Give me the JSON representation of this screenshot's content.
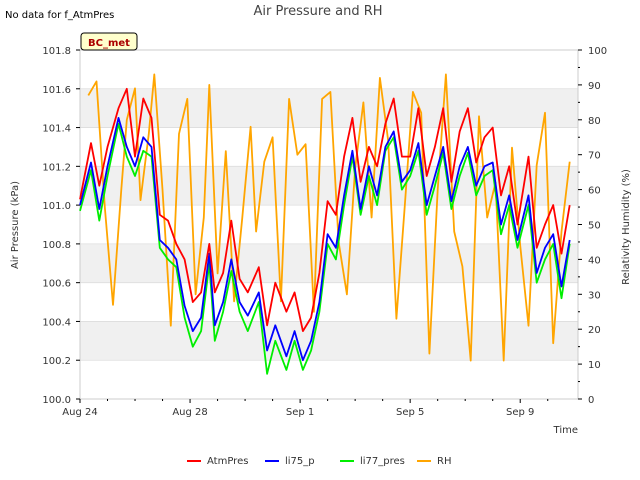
{
  "note": "No data for f_AtmPres",
  "chart_data": {
    "type": "line",
    "title": "Air Pressure and RH",
    "xlabel": "Time",
    "ylabel": "Air Pressure (kPa)",
    "y2label": "Relativity Humidity (%)",
    "badge": "BC_met",
    "xticks": [
      "Aug 24",
      "Aug 28",
      "Sep 1",
      "Sep 5",
      "Sep 9"
    ],
    "yticks": [
      "100.0",
      "100.2",
      "100.4",
      "100.6",
      "100.8",
      "101.0",
      "101.2",
      "101.4",
      "101.6",
      "101.8"
    ],
    "y2ticks": [
      "0",
      "10",
      "20",
      "30",
      "40",
      "50",
      "60",
      "70",
      "80",
      "90",
      "100"
    ],
    "ylim": [
      100.0,
      101.8
    ],
    "y2lim": [
      0,
      100
    ],
    "xlim_days": [
      0,
      18.1
    ],
    "grid": "horizontal bands",
    "legend_position": "bottom",
    "colors": {
      "AtmPres": "#ff0000",
      "li75_p": "#0000ff",
      "li77_pres": "#00ee00",
      "RH": "#ffa500",
      "band": "#f0f0f0"
    },
    "series": [
      {
        "name": "AtmPres",
        "axis": "left",
        "x": [
          0.0,
          0.4,
          0.7,
          1.0,
          1.4,
          1.7,
          2.0,
          2.3,
          2.6,
          2.9,
          3.2,
          3.5,
          3.8,
          4.1,
          4.4,
          4.7,
          4.9,
          5.2,
          5.5,
          5.8,
          6.1,
          6.5,
          6.8,
          7.1,
          7.5,
          7.8,
          8.1,
          8.4,
          8.7,
          9.0,
          9.3,
          9.6,
          9.9,
          10.2,
          10.5,
          10.8,
          11.1,
          11.4,
          11.7,
          12.0,
          12.3,
          12.6,
          12.9,
          13.2,
          13.5,
          13.8,
          14.1,
          14.4,
          14.7,
          15.0,
          15.3,
          15.6,
          15.9,
          16.3,
          16.6,
          16.9,
          17.2,
          17.5,
          17.8
        ],
        "y": [
          101.03,
          101.32,
          101.1,
          101.3,
          101.5,
          101.6,
          101.25,
          101.55,
          101.45,
          100.95,
          100.92,
          100.8,
          100.72,
          100.5,
          100.55,
          100.8,
          100.55,
          100.65,
          100.92,
          100.62,
          100.55,
          100.68,
          100.38,
          100.6,
          100.45,
          100.55,
          100.35,
          100.42,
          100.65,
          101.02,
          100.95,
          101.25,
          101.45,
          101.12,
          101.3,
          101.2,
          101.42,
          101.55,
          101.25,
          101.25,
          101.5,
          101.15,
          101.3,
          101.5,
          101.12,
          101.38,
          101.5,
          101.22,
          101.35,
          101.4,
          101.05,
          101.2,
          100.9,
          101.25,
          100.78,
          100.9,
          101.0,
          100.75,
          101.0
        ]
      },
      {
        "name": "li75_p",
        "axis": "left",
        "x": [
          0.0,
          0.4,
          0.7,
          1.0,
          1.4,
          1.7,
          2.0,
          2.3,
          2.6,
          2.9,
          3.2,
          3.5,
          3.8,
          4.1,
          4.4,
          4.7,
          4.9,
          5.2,
          5.5,
          5.8,
          6.1,
          6.5,
          6.8,
          7.1,
          7.5,
          7.8,
          8.1,
          8.4,
          8.7,
          9.0,
          9.3,
          9.6,
          9.9,
          10.2,
          10.5,
          10.8,
          11.1,
          11.4,
          11.7,
          12.0,
          12.3,
          12.6,
          12.9,
          13.2,
          13.5,
          13.8,
          14.1,
          14.4,
          14.7,
          15.0,
          15.3,
          15.6,
          15.9,
          16.3,
          16.6,
          16.9,
          17.2,
          17.5,
          17.8
        ],
        "y": [
          101.0,
          101.22,
          100.98,
          101.2,
          101.45,
          101.3,
          101.2,
          101.35,
          101.3,
          100.82,
          100.78,
          100.72,
          100.48,
          100.35,
          100.42,
          100.75,
          100.38,
          100.5,
          100.72,
          100.5,
          100.43,
          100.55,
          100.25,
          100.38,
          100.22,
          100.35,
          100.2,
          100.3,
          100.5,
          100.85,
          100.78,
          101.05,
          101.28,
          100.98,
          101.2,
          101.05,
          101.3,
          101.38,
          101.12,
          101.18,
          101.32,
          101.0,
          101.15,
          101.3,
          101.02,
          101.2,
          101.3,
          101.1,
          101.2,
          101.22,
          100.9,
          101.05,
          100.82,
          101.05,
          100.65,
          100.78,
          100.85,
          100.58,
          100.82
        ]
      },
      {
        "name": "li77_pres",
        "axis": "left",
        "x": [
          0.0,
          0.4,
          0.7,
          1.0,
          1.4,
          1.7,
          2.0,
          2.3,
          2.6,
          2.9,
          3.2,
          3.5,
          3.8,
          4.1,
          4.4,
          4.7,
          4.9,
          5.2,
          5.5,
          5.8,
          6.1,
          6.5,
          6.8,
          7.1,
          7.5,
          7.8,
          8.1,
          8.4,
          8.7,
          9.0,
          9.3,
          9.6,
          9.9,
          10.2,
          10.5,
          10.8,
          11.1,
          11.4,
          11.7,
          12.0,
          12.3,
          12.6,
          12.9,
          13.2,
          13.5,
          13.8,
          14.1,
          14.4,
          14.7,
          15.0,
          15.3,
          15.6,
          15.9,
          16.3,
          16.6,
          16.9,
          17.2,
          17.5,
          17.8
        ],
        "y": [
          100.97,
          101.18,
          100.92,
          101.15,
          101.42,
          101.25,
          101.15,
          101.28,
          101.25,
          100.78,
          100.72,
          100.68,
          100.42,
          100.27,
          100.35,
          100.7,
          100.3,
          100.45,
          100.66,
          100.45,
          100.35,
          100.5,
          100.13,
          100.3,
          100.15,
          100.3,
          100.15,
          100.25,
          100.45,
          100.8,
          100.72,
          101.0,
          101.25,
          100.95,
          101.15,
          101.0,
          101.28,
          101.35,
          101.08,
          101.15,
          101.28,
          100.95,
          101.1,
          101.27,
          100.98,
          101.15,
          101.27,
          101.05,
          101.15,
          101.18,
          100.85,
          101.0,
          100.78,
          101.0,
          100.6,
          100.72,
          100.8,
          100.52,
          100.8
        ]
      },
      {
        "name": "RH",
        "axis": "right",
        "x": [
          0.3,
          0.6,
          0.9,
          1.2,
          1.5,
          1.7,
          2.0,
          2.2,
          2.5,
          2.7,
          3.0,
          3.3,
          3.6,
          3.9,
          4.2,
          4.5,
          4.7,
          5.0,
          5.3,
          5.6,
          5.9,
          6.2,
          6.4,
          6.7,
          7.0,
          7.3,
          7.6,
          7.9,
          8.2,
          8.5,
          8.8,
          9.1,
          9.4,
          9.7,
          10.0,
          10.3,
          10.6,
          10.9,
          11.2,
          11.5,
          11.8,
          12.1,
          12.4,
          12.7,
          13.0,
          13.3,
          13.6,
          13.9,
          14.2,
          14.5,
          14.8,
          15.1,
          15.4,
          15.7,
          16.0,
          16.3,
          16.6,
          16.9,
          17.2,
          17.5,
          17.8
        ],
        "y": [
          87,
          91,
          55,
          27,
          60,
          80,
          89,
          57,
          76,
          93,
          60,
          21,
          76,
          86,
          30,
          52,
          90,
          36,
          71,
          28,
          52,
          78,
          48,
          68,
          75,
          28,
          86,
          70,
          73,
          25,
          86,
          88,
          45,
          30,
          66,
          85,
          52,
          92,
          74,
          23,
          55,
          88,
          82,
          13,
          60,
          93,
          48,
          38,
          11,
          81,
          52,
          62,
          11,
          72,
          44,
          21,
          67,
          82,
          16,
          48,
          68
        ]
      }
    ]
  }
}
